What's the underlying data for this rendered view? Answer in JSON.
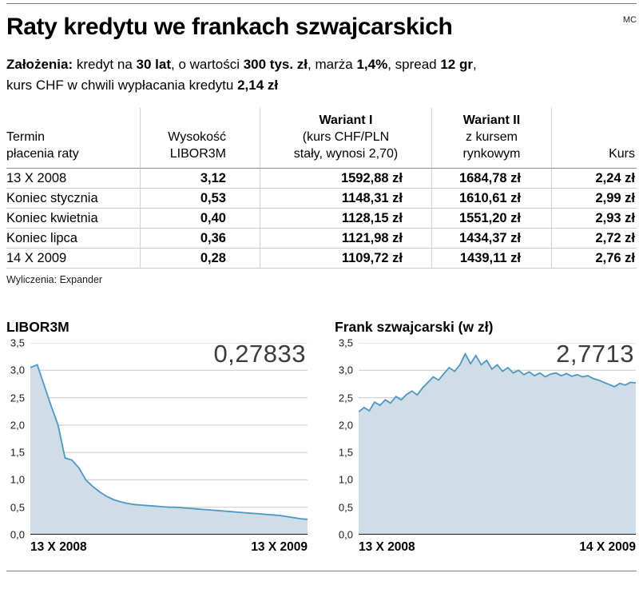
{
  "meta": {
    "credit": "MC"
  },
  "title": "Raty kredytu we frankach szwajcarskich",
  "assumptions": {
    "line1": [
      {
        "t": "Założenia: ",
        "b": true
      },
      {
        "t": "kredyt na ",
        "b": false
      },
      {
        "t": "30 lat",
        "b": true
      },
      {
        "t": ", o wartości ",
        "b": false
      },
      {
        "t": "300 tys. zł",
        "b": true
      },
      {
        "t": ", marża ",
        "b": false
      },
      {
        "t": "1,4%",
        "b": true
      },
      {
        "t": ", spread ",
        "b": false
      },
      {
        "t": "12 gr",
        "b": true
      },
      {
        "t": ",",
        "b": false
      }
    ],
    "line2": [
      {
        "t": "kurs CHF w chwili wypłacania kredytu ",
        "b": false
      },
      {
        "t": "2,14 zł",
        "b": true
      }
    ]
  },
  "table": {
    "headers": {
      "termin_l1": "Termin",
      "termin_l2": "płacenia raty",
      "wysokosc_l1": "Wysokość",
      "wysokosc_l2": "LIBOR3M",
      "wariant1_title": "Wariant I",
      "wariant1_sub1": "(kurs CHF/PLN",
      "wariant1_sub2": "stały, wynosi 2,70)",
      "wariant2_title": "Wariant II",
      "wariant2_sub1": "z kursem",
      "wariant2_sub2": "rynkowym",
      "kurs": "Kurs"
    },
    "rows": [
      [
        "13 X 2008",
        "3,12",
        "1592,88 zł",
        "1684,78 zł",
        "2,24 zł"
      ],
      [
        "Koniec stycznia",
        "0,53",
        "1148,31 zł",
        "1610,61 zł",
        "2,99 zł"
      ],
      [
        "Koniec kwietnia",
        "0,40",
        "1128,15 zł",
        "1551,20 zł",
        "2,93 zł"
      ],
      [
        "Koniec lipca",
        "0,36",
        "1121,98 zł",
        "1434,37 zł",
        "2,72 zł"
      ],
      [
        "14 X 2009",
        "0,28",
        "1109,72 zł",
        "1439,11 zł",
        "2,76 zł"
      ]
    ],
    "source": "Wyliczenia: Expander"
  },
  "chart_data": [
    {
      "type": "area",
      "title": "LIBOR3M",
      "current_value_label": "0,27833",
      "x_start_label": "13 X 2008",
      "x_end_label": "13 X 2009",
      "ylim": [
        0,
        3.5
      ],
      "ytick_step": 0.5,
      "yticks": [
        "3,5",
        "3,0",
        "2,5",
        "2,0",
        "1,5",
        "1,0",
        "0,5",
        "0,0"
      ],
      "values": [
        3.05,
        3.1,
        2.72,
        2.35,
        2.0,
        1.4,
        1.36,
        1.22,
        1.0,
        0.88,
        0.78,
        0.7,
        0.64,
        0.6,
        0.57,
        0.55,
        0.54,
        0.53,
        0.52,
        0.51,
        0.5,
        0.5,
        0.49,
        0.48,
        0.47,
        0.46,
        0.45,
        0.44,
        0.43,
        0.42,
        0.41,
        0.4,
        0.39,
        0.38,
        0.37,
        0.36,
        0.35,
        0.33,
        0.31,
        0.29,
        0.28
      ],
      "line_color": "#4f97c3",
      "fill_color": "#cfdde6",
      "grid_color": "#c9c9c9",
      "axis_color": "#1a1a1a"
    },
    {
      "type": "area",
      "title": "Frank szwajcarski (w zł)",
      "current_value_label": "2,7713",
      "x_start_label": "13 X 2008",
      "x_end_label": "14 X 2009",
      "ylim": [
        0,
        3.5
      ],
      "ytick_step": 0.5,
      "yticks": [
        "3,5",
        "3,0",
        "2,5",
        "2,0",
        "1,5",
        "1,0",
        "0,5",
        "0,0"
      ],
      "values": [
        2.24,
        2.32,
        2.26,
        2.42,
        2.36,
        2.46,
        2.4,
        2.52,
        2.46,
        2.56,
        2.62,
        2.55,
        2.68,
        2.78,
        2.88,
        2.82,
        2.94,
        3.05,
        2.98,
        3.1,
        3.3,
        3.12,
        3.27,
        3.1,
        3.18,
        3.02,
        3.1,
        2.98,
        3.05,
        2.95,
        3.0,
        2.92,
        2.97,
        2.9,
        2.95,
        2.88,
        2.93,
        2.95,
        2.9,
        2.94,
        2.89,
        2.92,
        2.88,
        2.9,
        2.85,
        2.82,
        2.78,
        2.74,
        2.7,
        2.76,
        2.73,
        2.78,
        2.77
      ],
      "line_color": "#4f97c3",
      "fill_color": "#cfdde6",
      "grid_color": "#c9c9c9",
      "axis_color": "#1a1a1a"
    }
  ]
}
